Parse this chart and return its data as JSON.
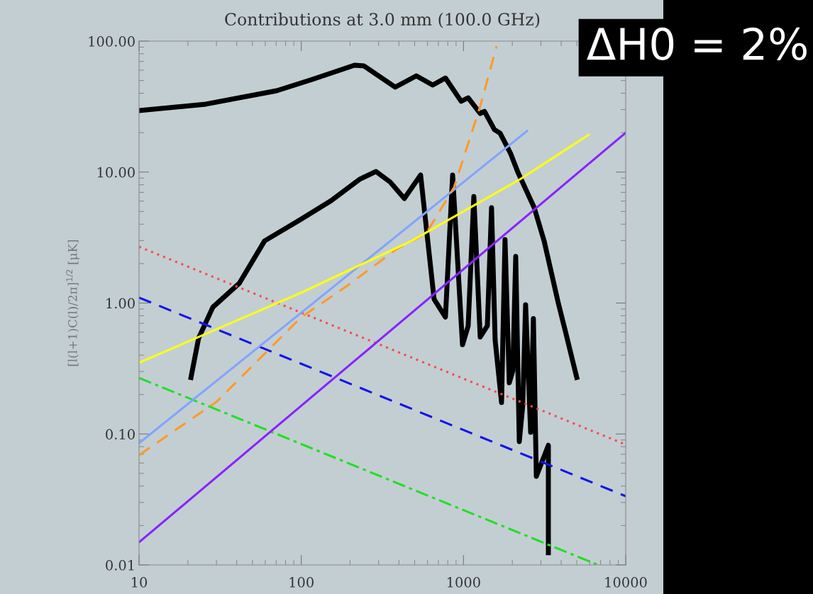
{
  "chart_data": {
    "type": "line",
    "title": "Contributions at 3.0 mm (100.0 GHz)",
    "ylabel": "[l(l+1)C(l)/2π]$^{1/2}$ [μK]",
    "log": "xy",
    "xlim": [
      10,
      10000
    ],
    "ylim": [
      0.01,
      100
    ],
    "xticks": [
      10,
      100,
      1000,
      10000
    ],
    "yticks": [
      {
        "value": 0.01,
        "label": "0.01"
      },
      {
        "value": 0.1,
        "label": "0.10"
      },
      {
        "value": 1,
        "label": "1.00"
      },
      {
        "value": 10,
        "label": "10.00"
      },
      {
        "value": 100,
        "label": "100.00"
      }
    ],
    "grid": false,
    "legend": false,
    "annotations": [
      "ΔH0 = 2%"
    ],
    "series": [
      {
        "color": "#000000",
        "line_style": "solid",
        "x": [
          10,
          25.8,
          70.5,
          117,
          213,
          243,
          379,
          512,
          646,
          774,
          967,
          1068,
          1268,
          1347,
          1551,
          1681,
          1955,
          2162,
          2729,
          3141,
          3840,
          4245,
          4990
        ],
        "values": [
          29.5,
          33.0,
          41.8,
          51,
          65.5,
          64.7,
          44.5,
          54.3,
          46.2,
          52.3,
          34.7,
          36.9,
          28.0,
          29.1,
          21.1,
          19.8,
          13.8,
          10.0,
          5.35,
          2.98,
          1.0,
          0.61,
          0.27
        ]
      },
      {
        "color": "#000000",
        "line_style": "solid",
        "x": [
          20.9,
          23.3,
          28.5,
          41.4,
          59.4,
          98.5,
          153,
          229,
          289,
          353,
          432,
          544,
          659,
          774,
          857,
          986,
          1069,
          1158,
          1268,
          1403,
          1489,
          1567,
          1716,
          1803,
          1916,
          2014,
          2099,
          2208,
          2317,
          2415,
          2594,
          2698,
          2812,
          3336,
          3336
        ],
        "values": [
          0.27,
          0.54,
          0.93,
          1.41,
          2.98,
          4.33,
          6.06,
          8.81,
          10.1,
          8.4,
          6.28,
          9.5,
          1.07,
          0.78,
          9.5,
          0.48,
          0.67,
          6.5,
          0.55,
          0.67,
          5.35,
          0.52,
          0.174,
          3.05,
          0.246,
          0.304,
          2.27,
          0.0875,
          0.163,
          0.97,
          0.103,
          0.76,
          0.0475,
          0.082,
          0.0124
        ]
      },
      {
        "color": "#ff4a4a",
        "line_style": "dotted",
        "x": [
          10,
          10000
        ],
        "values": [
          2.69,
          0.083
        ]
      },
      {
        "color": "#1414e6",
        "line_style": "dashed",
        "x": [
          10,
          10000
        ],
        "values": [
          1.1,
          0.0335
        ]
      },
      {
        "color": "#22e022",
        "line_style": "dashdot",
        "x": [
          10,
          6750
        ],
        "values": [
          0.268,
          0.01
        ]
      },
      {
        "color": "#82a4ff",
        "line_style": "solid",
        "x": [
          10,
          2466
        ],
        "values": [
          0.085,
          20.6
        ]
      },
      {
        "color": "#ff9a28",
        "line_style": "dashed",
        "x": [
          10,
          30,
          100,
          193,
          390,
          585,
          873,
          1268,
          1600
        ],
        "values": [
          0.069,
          0.176,
          0.78,
          1.36,
          2.6,
          3.37,
          7.6,
          31.8,
          91.6
        ]
      },
      {
        "color": "#ffff10",
        "line_style": "solid",
        "x": [
          10,
          100,
          478,
          2229,
          5915
        ],
        "values": [
          0.35,
          1.2,
          2.98,
          8.8,
          19.3
        ]
      },
      {
        "color": "#8a22ff",
        "line_style": "solid",
        "x": [
          10,
          10000
        ],
        "values": [
          0.0149,
          20
        ]
      }
    ]
  }
}
